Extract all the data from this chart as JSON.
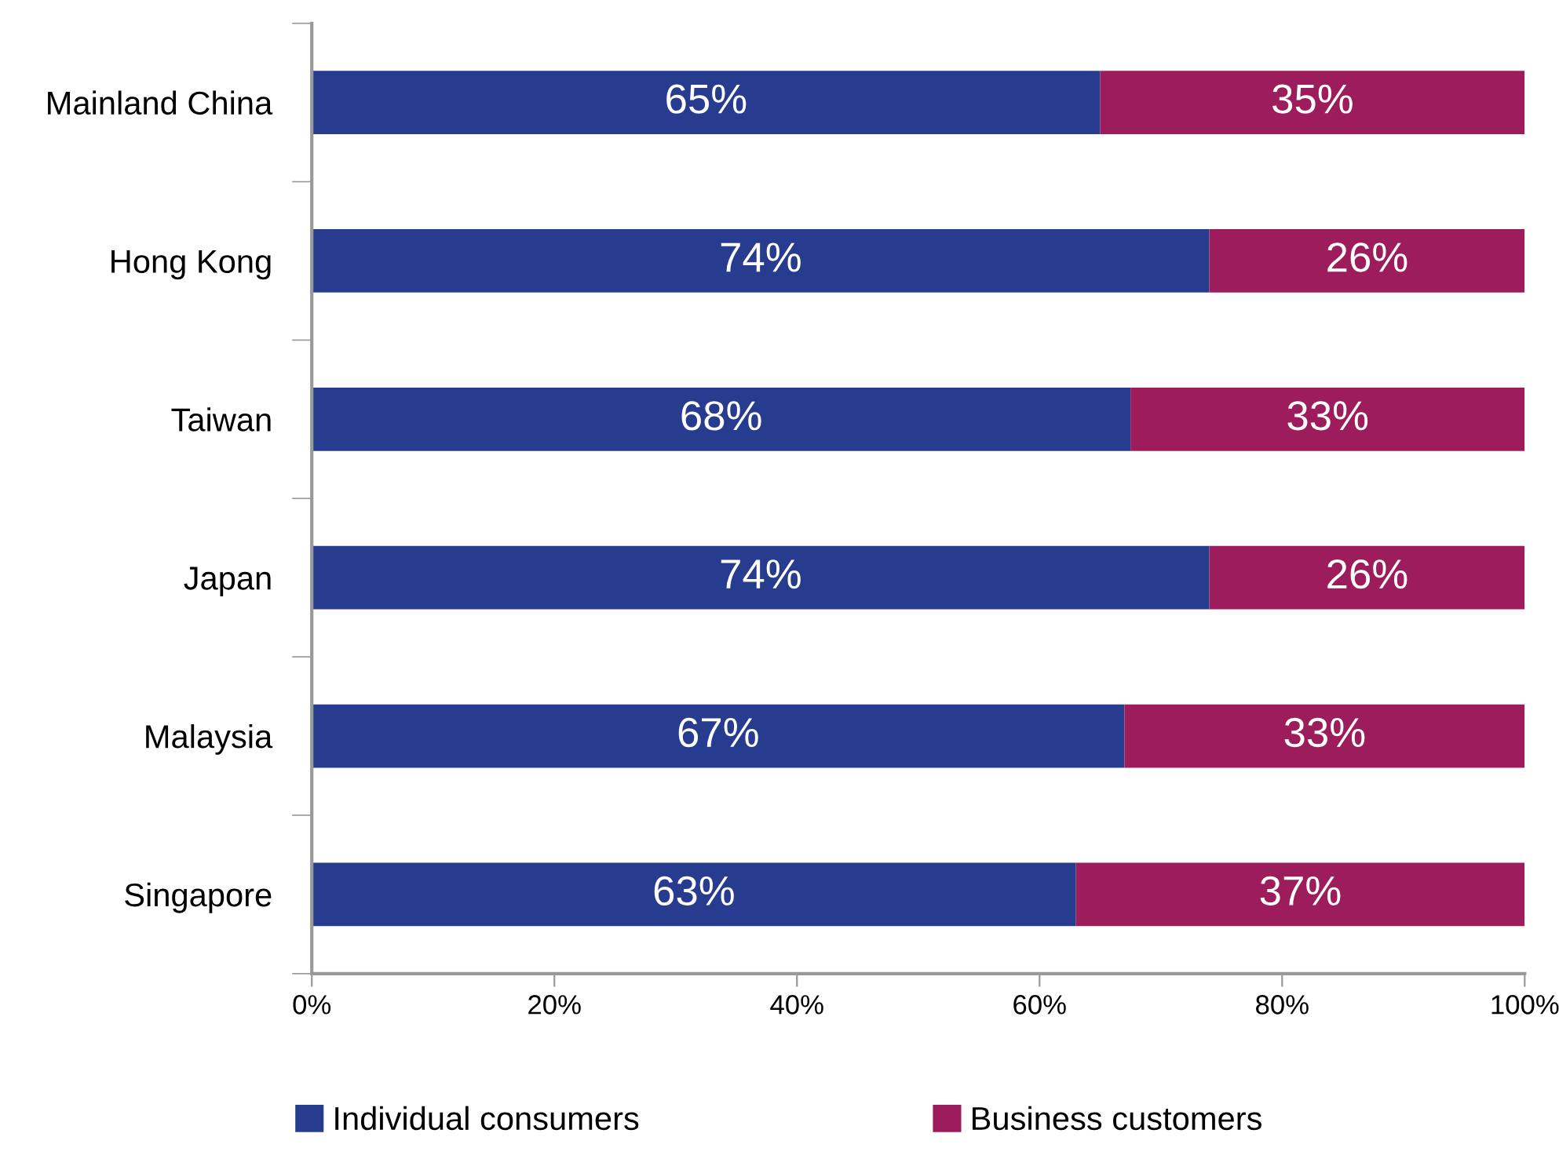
{
  "chart_data": {
    "type": "bar",
    "orientation": "horizontal",
    "stacked": true,
    "categories": [
      "Mainland China",
      "Hong Kong",
      "Taiwan",
      "Japan",
      "Malaysia",
      "Singapore"
    ],
    "series": [
      {
        "name": "Individual consumers",
        "color": "#283c8f",
        "values": [
          65,
          74,
          67.5,
          74,
          67,
          63
        ],
        "value_labels": [
          "65%",
          "74%",
          "68%",
          "74%",
          "67%",
          "63%"
        ]
      },
      {
        "name": "Business customers",
        "color": "#9c1c5c",
        "values": [
          35,
          26,
          32.5,
          26,
          33,
          37
        ],
        "value_labels": [
          "35%",
          "26%",
          "33%",
          "26%",
          "33%",
          "37%"
        ]
      }
    ],
    "xlim": [
      0,
      100
    ],
    "xticks": [
      {
        "value": 0,
        "label": "0%"
      },
      {
        "value": 20,
        "label": "20%"
      },
      {
        "value": 40,
        "label": "40%"
      },
      {
        "value": 60,
        "label": "60%"
      },
      {
        "value": 80,
        "label": "80%"
      },
      {
        "value": 100,
        "label": "100%"
      }
    ],
    "legend": "bottom",
    "grid": false
  }
}
